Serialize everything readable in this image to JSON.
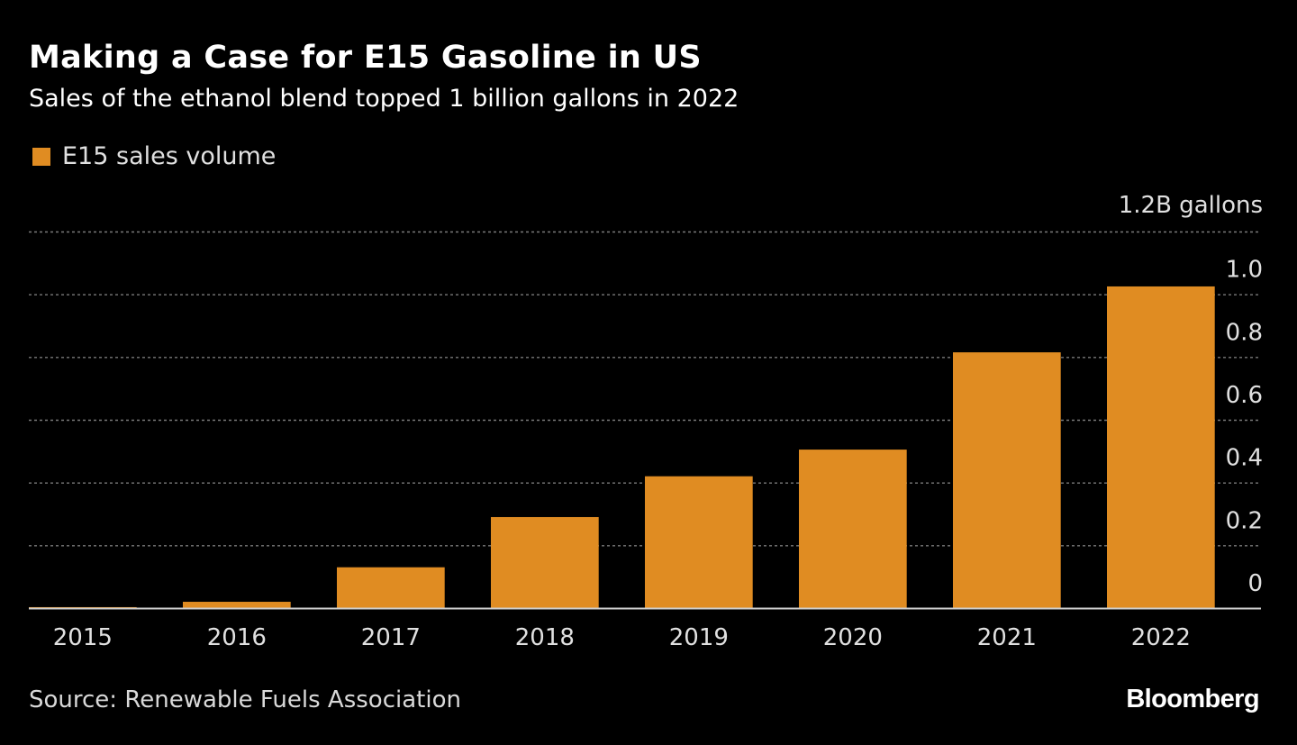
{
  "header": {
    "title": "Making a Case for E15 Gasoline in US",
    "subtitle": "Sales of the ethanol blend topped 1 billion gallons in 2022"
  },
  "legend": {
    "label": "E15 sales volume"
  },
  "footer": {
    "source": "Source: Renewable Fuels Association",
    "brand": "Bloomberg"
  },
  "colors": {
    "background": "#000000",
    "bar": "#e08c22",
    "grid": "#7a7a7a",
    "baseline": "#cfcfcf",
    "tick_text": "#e0e0e0"
  },
  "chart_data": {
    "type": "bar",
    "title": "Making a Case for E15 Gasoline in US",
    "subtitle": "Sales of the ethanol blend topped 1 billion gallons in 2022",
    "categories": [
      "2015",
      "2016",
      "2017",
      "2018",
      "2019",
      "2020",
      "2021",
      "2022"
    ],
    "series": [
      {
        "name": "E15 sales volume",
        "values": [
          0.003,
          0.02,
          0.13,
          0.29,
          0.42,
          0.505,
          0.815,
          1.025
        ]
      }
    ],
    "unit_label": "1.2B gallons",
    "yticks": [
      "0",
      "0.2",
      "0.4",
      "0.6",
      "0.8",
      "1.0"
    ],
    "yticks_values": [
      0,
      0.2,
      0.4,
      0.6,
      0.8,
      1.0
    ],
    "ylim": [
      0,
      1.2
    ],
    "grid": true,
    "legend_position": "top-left",
    "y_axis_position": "right"
  }
}
